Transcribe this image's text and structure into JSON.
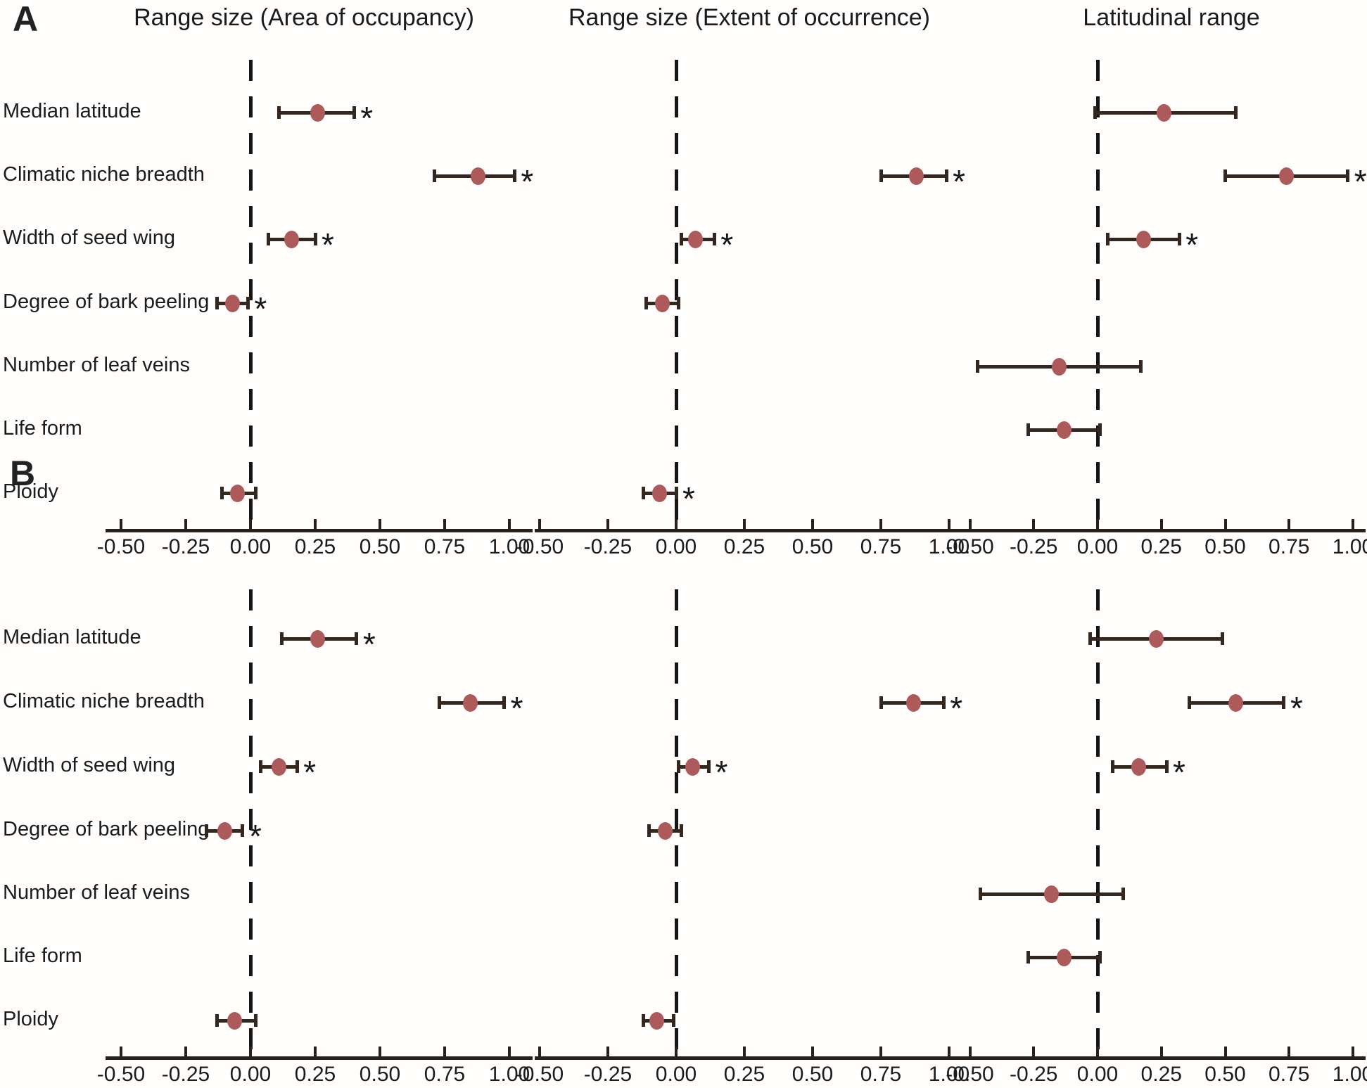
{
  "chart_data": {
    "type": "scatter",
    "subtype": "forest-plot-dot-whisker",
    "title": "",
    "columns": [
      "Range size (Area of occupancy)",
      "Range size (Extent of occurrence)",
      "Latitudinal range"
    ],
    "predictors": [
      "Median latitude",
      "Climatic niche breadth",
      "Width of seed wing",
      "Degree of bark peeling",
      "Number of leaf veins",
      "Life form",
      "Ploidy"
    ],
    "x_axis": {
      "ticks": [
        -0.5,
        -0.25,
        0,
        0.25,
        0.5,
        0.75,
        1.0
      ],
      "tick_labels": [
        "-0.50",
        "-0.25",
        "0.00",
        "0.25",
        "0.50",
        "0.75",
        "1.00"
      ],
      "range": [
        -0.58,
        1.08
      ],
      "zero_reference_line": "dashed",
      "grid": false
    },
    "legend": "none",
    "colors": {
      "point": "#ac5a5a",
      "error_bar": "#33271f",
      "reference_line": "#141414",
      "text": "#1b1b1b"
    },
    "significance_marker": "*",
    "panels": [
      {
        "label": "A",
        "estimates": [
          [
            {
              "value": 0.26,
              "lo": 0.11,
              "hi": 0.4,
              "significant": true
            },
            {
              "value": 0.88,
              "lo": 0.71,
              "hi": 1.02,
              "significant": true
            },
            {
              "value": 0.16,
              "lo": 0.07,
              "hi": 0.25,
              "significant": true
            },
            {
              "value": -0.07,
              "lo": -0.13,
              "hi": -0.01,
              "significant": true
            },
            null,
            null,
            {
              "value": -0.05,
              "lo": -0.11,
              "hi": 0.02,
              "significant": false
            }
          ],
          [
            null,
            {
              "value": 0.88,
              "lo": 0.75,
              "hi": 0.99,
              "significant": true
            },
            {
              "value": 0.07,
              "lo": 0.02,
              "hi": 0.14,
              "significant": true
            },
            {
              "value": -0.05,
              "lo": -0.11,
              "hi": 0.01,
              "significant": false
            },
            null,
            null,
            {
              "value": -0.06,
              "lo": -0.12,
              "hi": 0.0,
              "significant": true
            }
          ],
          [
            {
              "value": 0.26,
              "lo": -0.01,
              "hi": 0.54,
              "significant": false
            },
            {
              "value": 0.74,
              "lo": 0.5,
              "hi": 0.98,
              "significant": true
            },
            {
              "value": 0.18,
              "lo": 0.04,
              "hi": 0.32,
              "significant": true
            },
            null,
            {
              "value": -0.15,
              "lo": -0.47,
              "hi": 0.17,
              "significant": false
            },
            {
              "value": -0.13,
              "lo": -0.27,
              "hi": 0.01,
              "significant": false
            },
            null
          ]
        ]
      },
      {
        "label": "B",
        "estimates": [
          [
            {
              "value": 0.26,
              "lo": 0.12,
              "hi": 0.41,
              "significant": true
            },
            {
              "value": 0.85,
              "lo": 0.73,
              "hi": 0.98,
              "significant": true
            },
            {
              "value": 0.11,
              "lo": 0.04,
              "hi": 0.18,
              "significant": true
            },
            {
              "value": -0.1,
              "lo": -0.17,
              "hi": -0.03,
              "significant": true
            },
            null,
            null,
            {
              "value": -0.06,
              "lo": -0.13,
              "hi": 0.02,
              "significant": false
            }
          ],
          [
            null,
            {
              "value": 0.87,
              "lo": 0.75,
              "hi": 0.98,
              "significant": true
            },
            {
              "value": 0.06,
              "lo": 0.01,
              "hi": 0.12,
              "significant": true
            },
            {
              "value": -0.04,
              "lo": -0.1,
              "hi": 0.02,
              "significant": false
            },
            null,
            null,
            {
              "value": -0.07,
              "lo": -0.12,
              "hi": -0.01,
              "significant": false
            }
          ],
          [
            {
              "value": 0.23,
              "lo": -0.03,
              "hi": 0.49,
              "significant": false
            },
            {
              "value": 0.54,
              "lo": 0.36,
              "hi": 0.73,
              "significant": true
            },
            {
              "value": 0.16,
              "lo": 0.06,
              "hi": 0.27,
              "significant": true
            },
            null,
            {
              "value": -0.18,
              "lo": -0.46,
              "hi": 0.1,
              "significant": false
            },
            {
              "value": -0.13,
              "lo": -0.27,
              "hi": 0.01,
              "significant": false
            },
            null
          ]
        ]
      }
    ]
  }
}
